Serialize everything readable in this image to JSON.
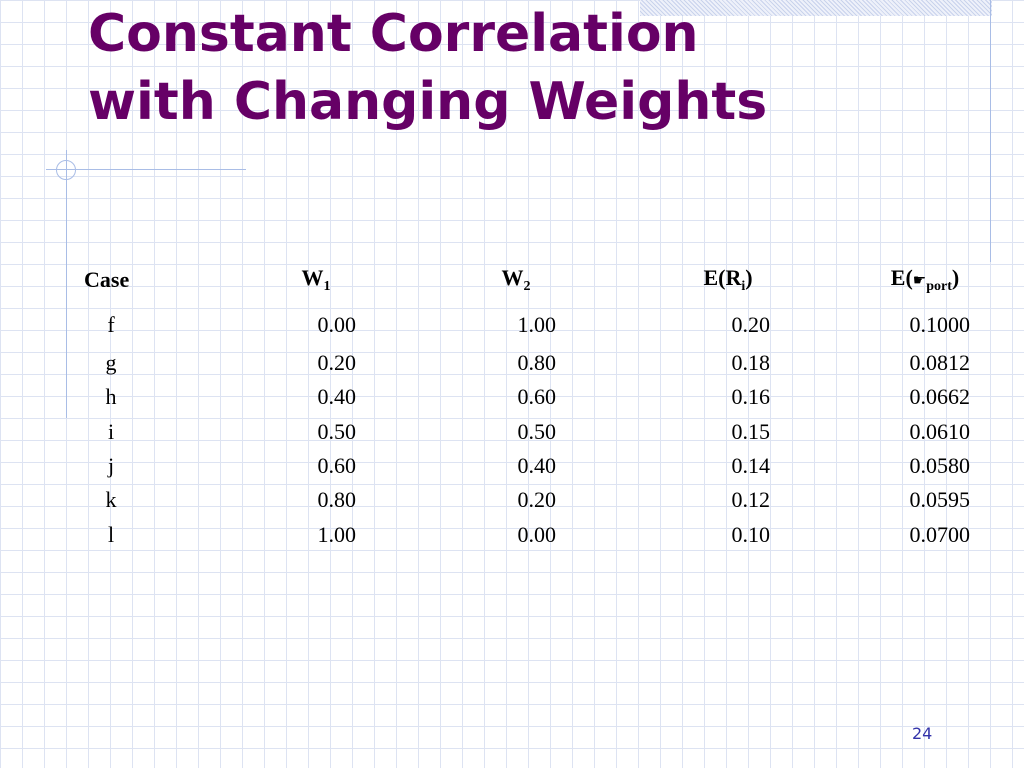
{
  "slide": {
    "title_line1": "Constant Correlation",
    "title_line2": "with Changing Weights",
    "page_number": "24",
    "colors": {
      "title": "#660066",
      "grid": "#dde3f2",
      "accent": "#a9bde6",
      "page_number": "#3333aa"
    }
  },
  "table": {
    "headers": {
      "case": "Case",
      "w1_base": "W",
      "w1_sub": "1",
      "w2_base": "W",
      "w2_sub": "2",
      "er_base": "E(R",
      "er_sub": "i",
      "er_close": ")",
      "ep_base": "E(",
      "ep_symbol": "☛",
      "ep_sub": "port",
      "ep_close": ")"
    },
    "rows": [
      {
        "case": "f",
        "w1": "0.00",
        "w2": "1.00",
        "er": "0.20",
        "ep": "0.1000"
      },
      {
        "case": "g",
        "w1": "0.20",
        "w2": "0.80",
        "er": "0.18",
        "ep": "0.0812"
      },
      {
        "case": "h",
        "w1": "0.40",
        "w2": "0.60",
        "er": "0.16",
        "ep": "0.0662"
      },
      {
        "case": "i",
        "w1": "0.50",
        "w2": "0.50",
        "er": "0.15",
        "ep": "0.0610"
      },
      {
        "case": "j",
        "w1": "0.60",
        "w2": "0.40",
        "er": "0.14",
        "ep": "0.0580"
      },
      {
        "case": "k",
        "w1": "0.80",
        "w2": "0.20",
        "er": "0.12",
        "ep": "0.0595"
      },
      {
        "case": "l",
        "w1": "1.00",
        "w2": "0.00",
        "er": "0.10",
        "ep": "0.0700"
      }
    ]
  }
}
